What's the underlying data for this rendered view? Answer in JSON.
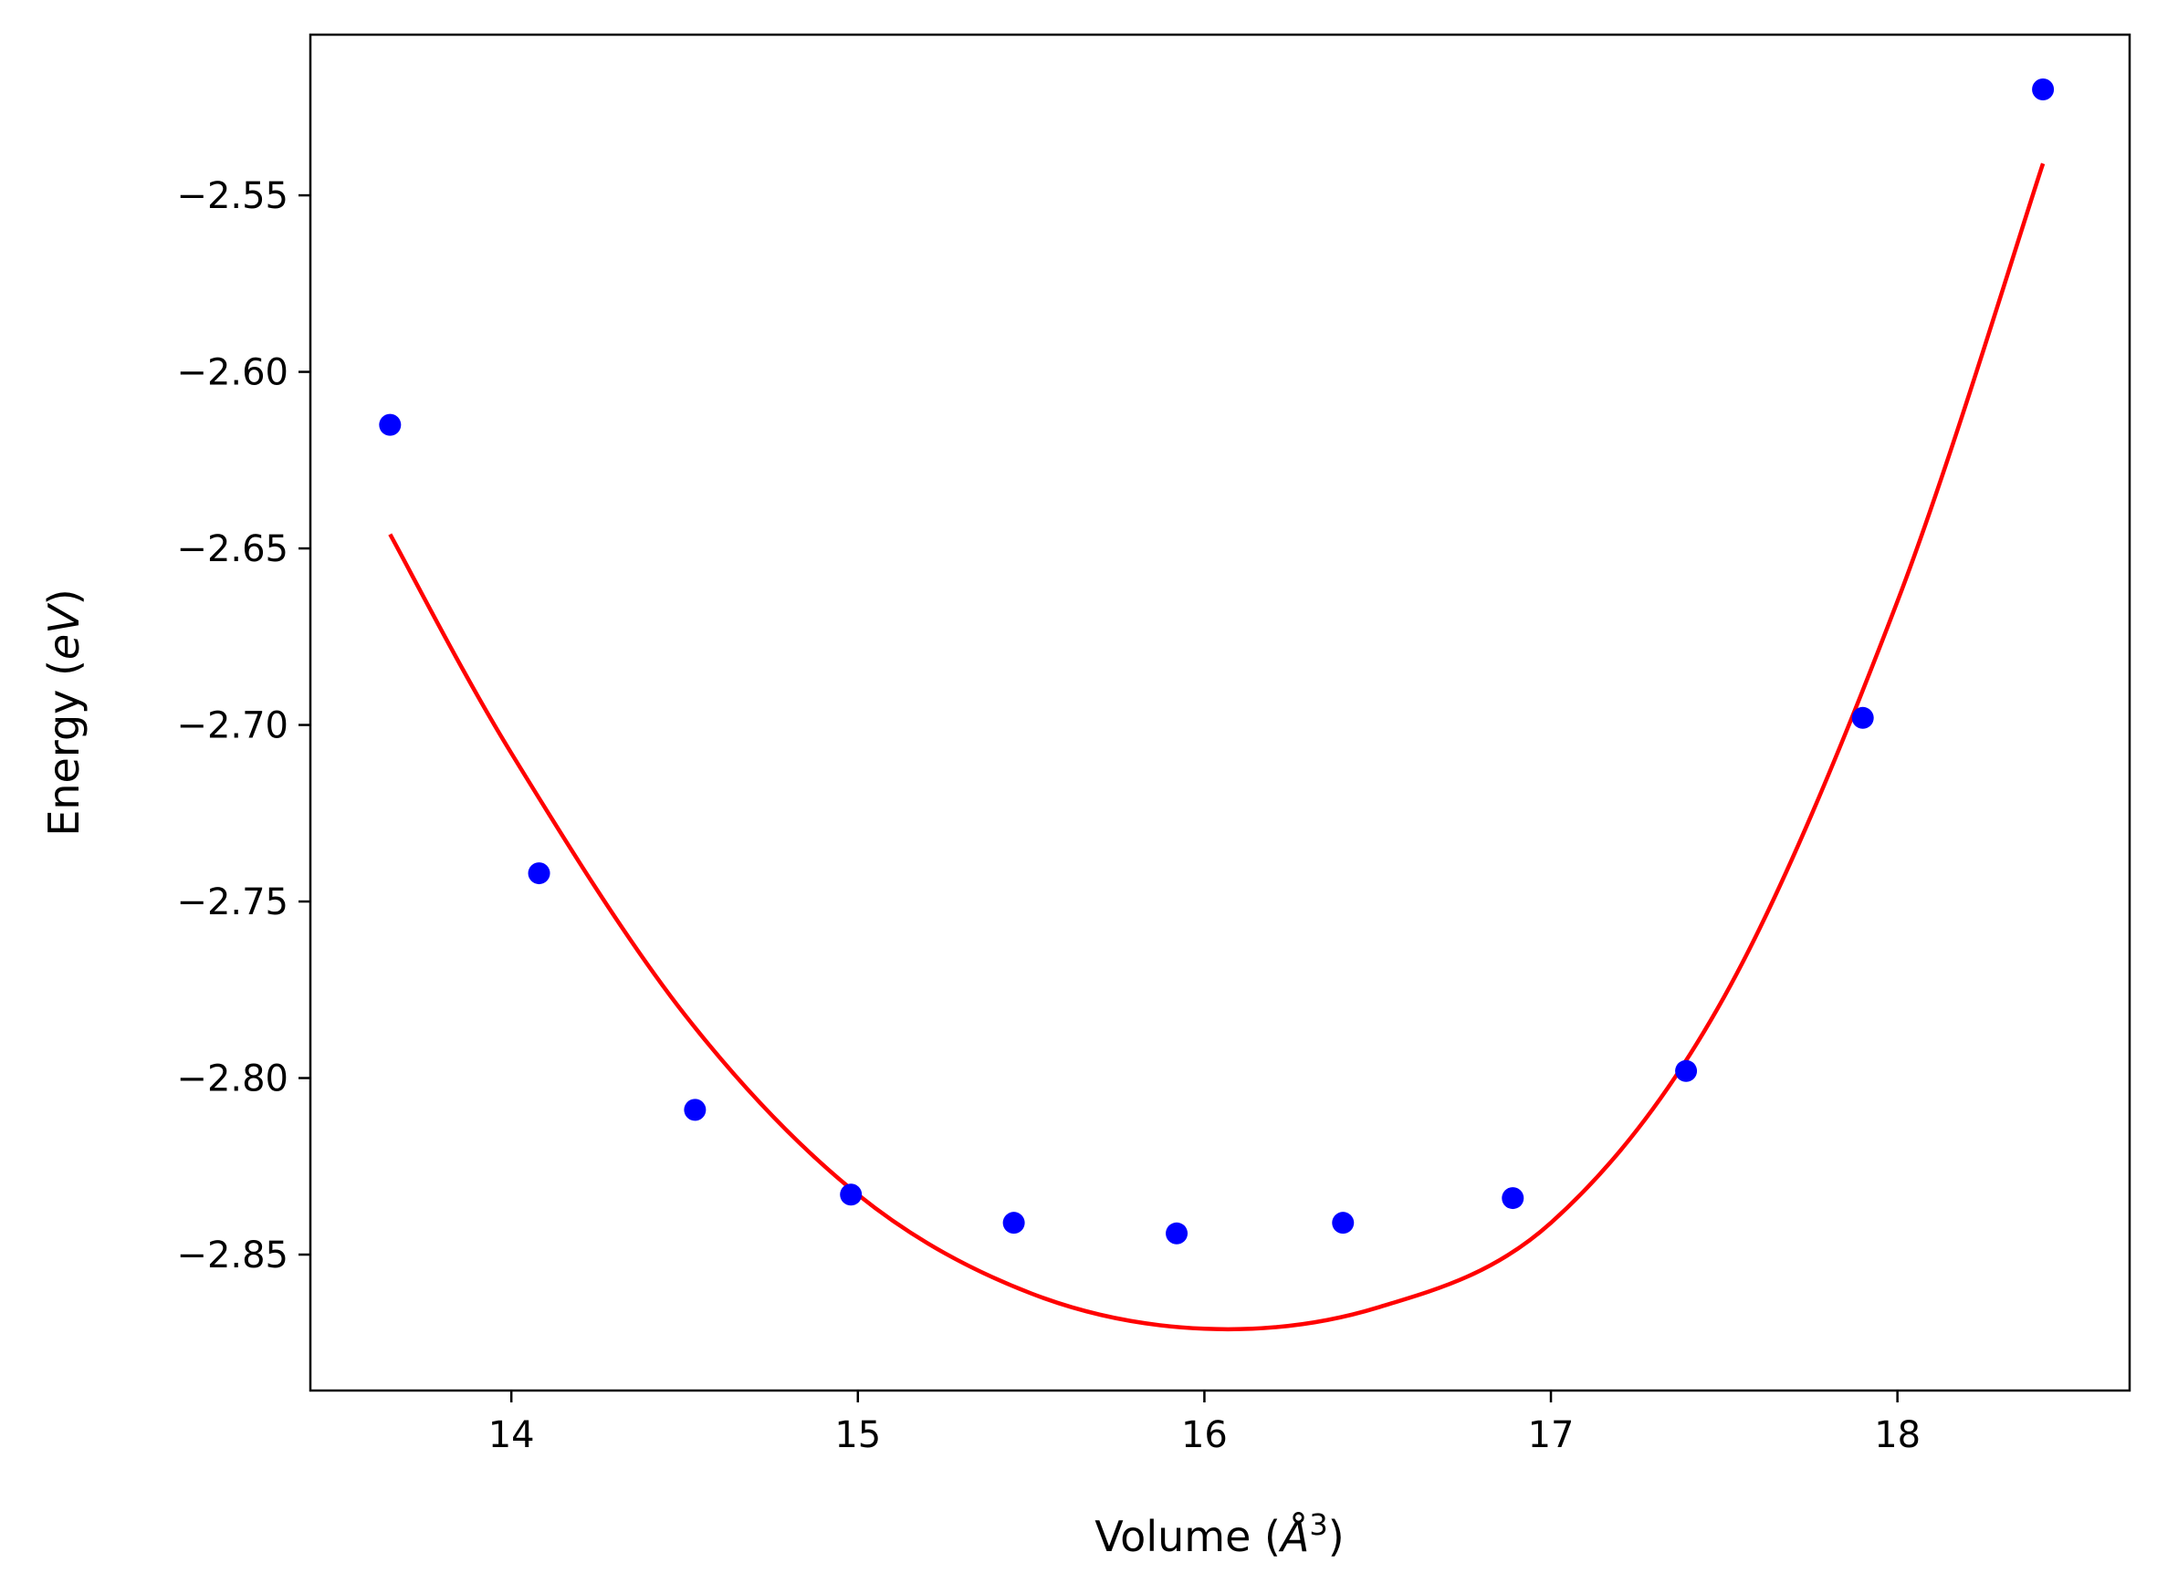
{
  "chart_data": {
    "type": "scatter",
    "xlabel": {
      "text": "Volume (",
      "symbol": "Å",
      "sup": "3",
      "close": ")"
    },
    "ylabel": {
      "text": "Energy (",
      "symbol": "eV",
      "close": ")"
    },
    "xlim": [
      13.42,
      18.67
    ],
    "ylim": [
      -2.8885,
      -2.5045
    ],
    "xticks": [
      14,
      15,
      16,
      17,
      18
    ],
    "xtick_labels": [
      "14",
      "15",
      "16",
      "17",
      "18"
    ],
    "yticks": [
      -2.55,
      -2.6,
      -2.65,
      -2.7,
      -2.75,
      -2.8,
      -2.85
    ],
    "ytick_labels": [
      "−2.55",
      "−2.60",
      "−2.65",
      "−2.70",
      "−2.75",
      "−2.80",
      "−2.85"
    ],
    "grid": false,
    "series": [
      {
        "kind": "points",
        "color": "#0000ff",
        "x": [
          13.65,
          14.08,
          14.53,
          14.98,
          15.45,
          15.92,
          16.4,
          16.89,
          17.39,
          17.9,
          18.42
        ],
        "y": [
          -2.615,
          -2.742,
          -2.809,
          -2.833,
          -2.841,
          -2.844,
          -2.841,
          -2.834,
          -2.798,
          -2.698,
          -2.52
        ]
      },
      {
        "kind": "fit-curve",
        "color": "#ff0000",
        "x": [
          13.65,
          14.0,
          14.5,
          15.0,
          15.5,
          16.0,
          16.5,
          17.0,
          17.5,
          18.0,
          18.42
        ],
        "y": [
          -2.646,
          -2.708,
          -2.782,
          -2.833,
          -2.861,
          -2.871,
          -2.865,
          -2.841,
          -2.777,
          -2.665,
          -2.541
        ]
      }
    ]
  }
}
